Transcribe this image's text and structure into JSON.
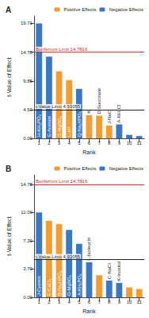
{
  "chart_data": [
    {
      "type": "bar",
      "title": "A",
      "xlabel": "Rank",
      "ylabel": "t-Value of Effect",
      "categories": [
        "1",
        "2",
        "3",
        "4",
        "5",
        "6",
        "7",
        "8",
        "9",
        "10",
        "11"
      ],
      "series": [
        {
          "name": "Positive Effects",
          "color": "#f39c2f",
          "values": [
            null,
            null,
            11.5,
            10.0,
            null,
            4.0,
            3.9,
            2.2,
            null,
            null,
            null
          ]
        },
        {
          "name": "Negative Effects",
          "color": "#3b78c2",
          "values": [
            19.71,
            14.0,
            null,
            null,
            8.5,
            null,
            null,
            null,
            2.4,
            0.6,
            0.4
          ]
        }
      ],
      "annotations": [
        "H-KH₂PO₄",
        "E-Acetate",
        "G-MgSO₄",
        "L-pH",
        "Q-Na₂HPO₄",
        "K",
        "D-Succinate",
        "J-NaCl",
        "A-NH₄Cl",
        null,
        null
      ],
      "reference_lines": [
        {
          "value": 14.7816,
          "label": "Bonferroni Limit 14.7816",
          "color": "#d62728"
        },
        {
          "value": 4.93055,
          "label": "t-Value Limit 4.93055",
          "color": "#222222"
        }
      ],
      "ylim": [
        0,
        21
      ],
      "yticks": [
        {
          "value": 0,
          "label": "0.00"
        },
        4.93,
        9.85,
        14.78,
        19.71
      ],
      "grid": false,
      "legend": "upper right"
    },
    {
      "type": "bar",
      "title": "B",
      "xlabel": "Rank",
      "ylabel": "t-Value of Effect",
      "categories": [
        "1",
        "2",
        "3",
        "4",
        "5",
        "6",
        "7",
        "8",
        "9",
        "10",
        "11"
      ],
      "series": [
        {
          "name": "Positive Effects",
          "color": "#f39c2f",
          "values": [
            null,
            10.0,
            9.6,
            null,
            null,
            null,
            2.9,
            null,
            null,
            1.3,
            1.1
          ]
        },
        {
          "name": "Negative Effects",
          "color": "#3b78c2",
          "values": [
            11.09,
            null,
            null,
            8.8,
            7.0,
            4.6,
            null,
            2.2,
            1.9,
            null,
            null
          ]
        }
      ],
      "annotations": [
        "J-Cystein",
        "E-CaCl₂",
        "B-Na₂HPO₄",
        "G-MgSO₄",
        "A-KH₂PO₄",
        "L-Isoleucin",
        null,
        "C-NaCl",
        "K-Inositol",
        null,
        null
      ],
      "reference_lines": [
        {
          "value": 14.7816,
          "label": "Bonferroni Limit 14.7816",
          "color": "#d62728"
        },
        {
          "value": 4.93055,
          "label": "t-Value Limit 4.93055",
          "color": "#222222"
        }
      ],
      "ylim": [
        0,
        16
      ],
      "yticks": [
        {
          "value": 0,
          "label": "0.00"
        },
        {
          "value": 3.7,
          "label": "3.70"
        },
        7.39,
        11.09,
        14.78
      ],
      "grid": false,
      "legend": "upper right"
    }
  ]
}
